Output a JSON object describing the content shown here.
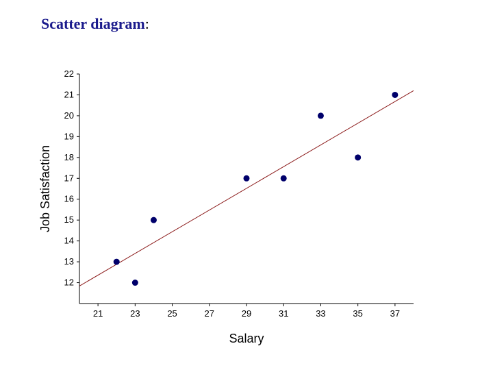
{
  "slide": {
    "title_main": "Scatter diagram",
    "title_suffix": ":"
  },
  "chart_data": {
    "type": "scatter",
    "title": "",
    "xlabel": "Salary",
    "ylabel": "Job Satisfaction",
    "xlim": [
      20,
      38
    ],
    "ylim": [
      11,
      22
    ],
    "x_ticks": [
      21,
      23,
      25,
      27,
      29,
      31,
      33,
      35,
      37
    ],
    "y_ticks": [
      12,
      13,
      14,
      15,
      16,
      17,
      18,
      19,
      20,
      21,
      22
    ],
    "points": [
      {
        "x": 22,
        "y": 13
      },
      {
        "x": 23,
        "y": 12
      },
      {
        "x": 24,
        "y": 15
      },
      {
        "x": 29,
        "y": 17
      },
      {
        "x": 31,
        "y": 17
      },
      {
        "x": 33,
        "y": 20
      },
      {
        "x": 35,
        "y": 18
      },
      {
        "x": 37,
        "y": 21
      }
    ],
    "trendline": {
      "x1": 20,
      "y1": 11.84,
      "x2": 38,
      "y2": 21.2
    },
    "colors": {
      "points": "#00006b",
      "trendline": "#8b1a1a",
      "axis": "#000000"
    },
    "grid": false
  }
}
